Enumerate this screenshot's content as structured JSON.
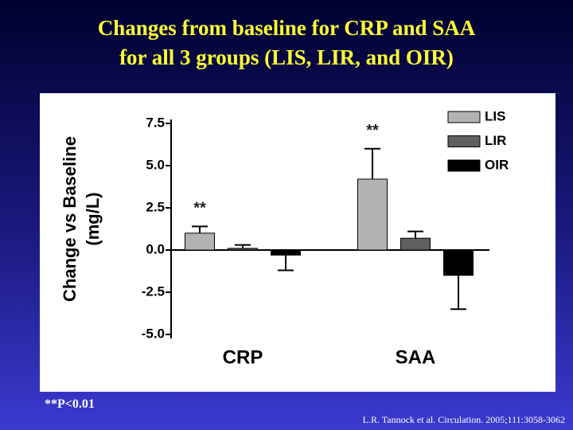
{
  "chart_data": {
    "type": "bar",
    "title": [
      "Changes from baseline for CRP and SAA",
      "for all 3 groups (LIS, LIR, and OIR)"
    ],
    "ylabel": "Change vs Baseline",
    "ylabel_unit": "(mg/L)",
    "categories": [
      "CRP",
      "SAA"
    ],
    "series": [
      {
        "name": "LIS",
        "color": "#b3b3b3",
        "values": [
          1.0,
          4.2
        ],
        "errors": [
          0.4,
          1.8
        ],
        "significance": [
          "**",
          "**"
        ]
      },
      {
        "name": "LIR",
        "color": "#606060",
        "values": [
          0.1,
          0.7
        ],
        "errors": [
          0.2,
          0.4
        ]
      },
      {
        "name": "OIR",
        "color": "#000000",
        "values": [
          -0.3,
          -1.5
        ],
        "errors": [
          0.9,
          2.0
        ]
      }
    ],
    "ylim": [
      -5,
      7.5
    ],
    "yticks": [
      {
        "value": 7.5,
        "label": "7.5"
      },
      {
        "value": 5,
        "label": "5.0"
      },
      {
        "value": 2.5,
        "label": "2.5"
      },
      {
        "value": 0,
        "label": "0.0"
      },
      {
        "value": -2.5,
        "label": "-2.5"
      },
      {
        "value": -5,
        "label": "-5.0"
      }
    ],
    "legend": "top-right"
  },
  "footnote": "**P<0.01",
  "source": "L.R. Tannock et al. Circulation. 2005;111:3058-3062"
}
